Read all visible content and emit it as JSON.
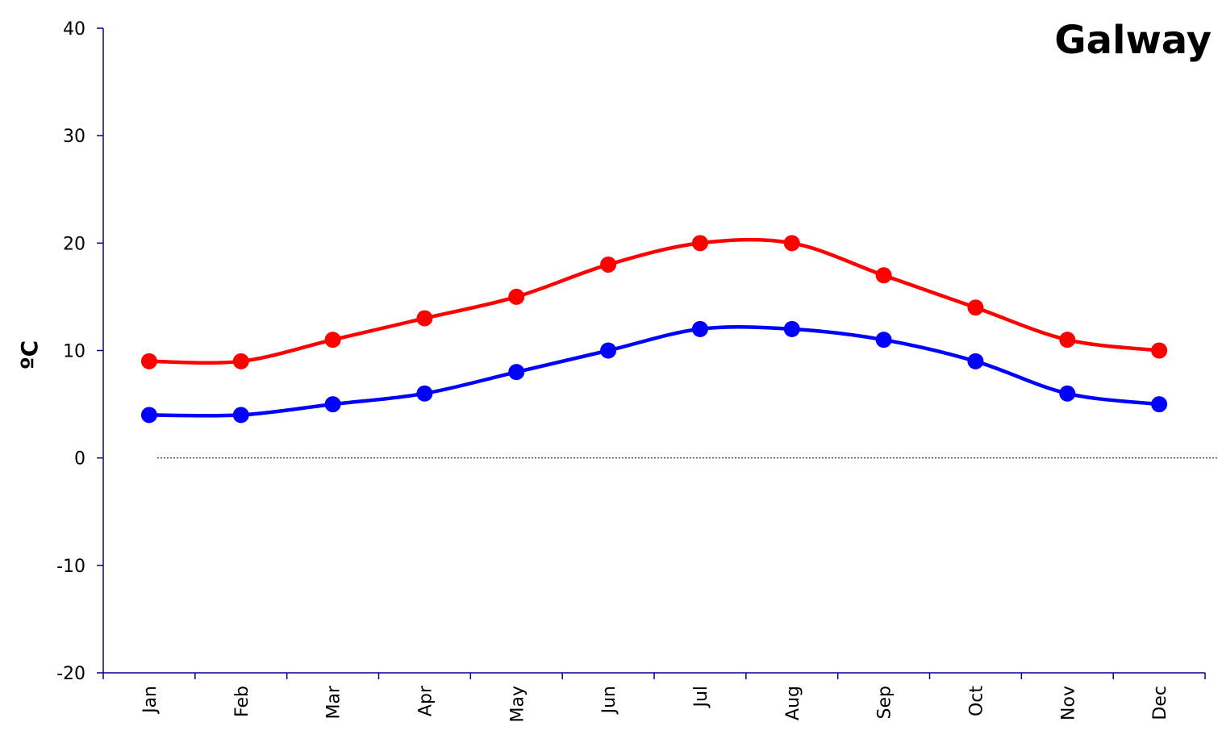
{
  "chart_data": {
    "type": "line",
    "title": "Galway",
    "ylabel": "ºC",
    "xlabel": "",
    "categories": [
      "Jan",
      "Feb",
      "Mar",
      "Apr",
      "May",
      "Jun",
      "Jul",
      "Aug",
      "Sep",
      "Oct",
      "Nov",
      "Dec"
    ],
    "ylim": [
      -20,
      40
    ],
    "yticks": [
      -20,
      -10,
      0,
      10,
      20,
      30,
      40
    ],
    "grid": false,
    "zero_line": true,
    "series": [
      {
        "color": "#ff0000",
        "values": [
          9,
          9,
          11,
          13,
          15,
          18,
          20,
          20,
          17,
          14,
          11,
          10
        ]
      },
      {
        "color": "#0000ff",
        "values": [
          4,
          4,
          5,
          6,
          8,
          10,
          12,
          12,
          11,
          9,
          6,
          5
        ]
      }
    ]
  }
}
